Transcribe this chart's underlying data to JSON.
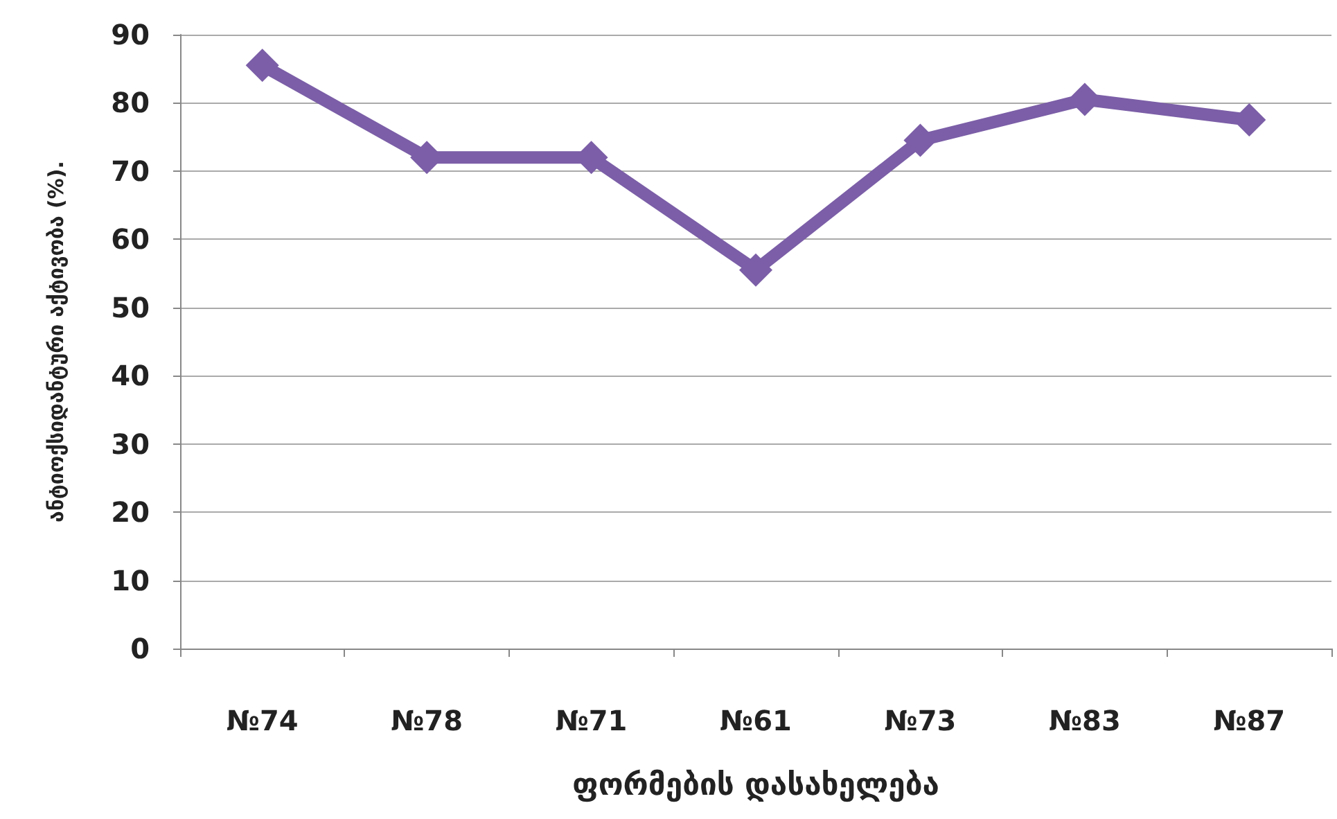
{
  "chart_data": {
    "type": "line",
    "xlabel": "ფორმების დასახელება",
    "ylabel": "ანტიოქსიდანტური აქტივობა (%).",
    "categories": [
      "№74",
      "№78",
      "№71",
      "№61",
      "№73",
      "№83",
      "№87"
    ],
    "series": [
      {
        "color": "#7b5ea7",
        "values": [
          85.5,
          72,
          72,
          55.5,
          74.5,
          80.5,
          77.5
        ]
      }
    ],
    "ylim": [
      0,
      90
    ],
    "yticks": [
      0,
      10,
      20,
      30,
      40,
      50,
      60,
      70,
      80,
      90
    ],
    "grid": "y",
    "marker": "diamond",
    "line_style": "solid"
  }
}
